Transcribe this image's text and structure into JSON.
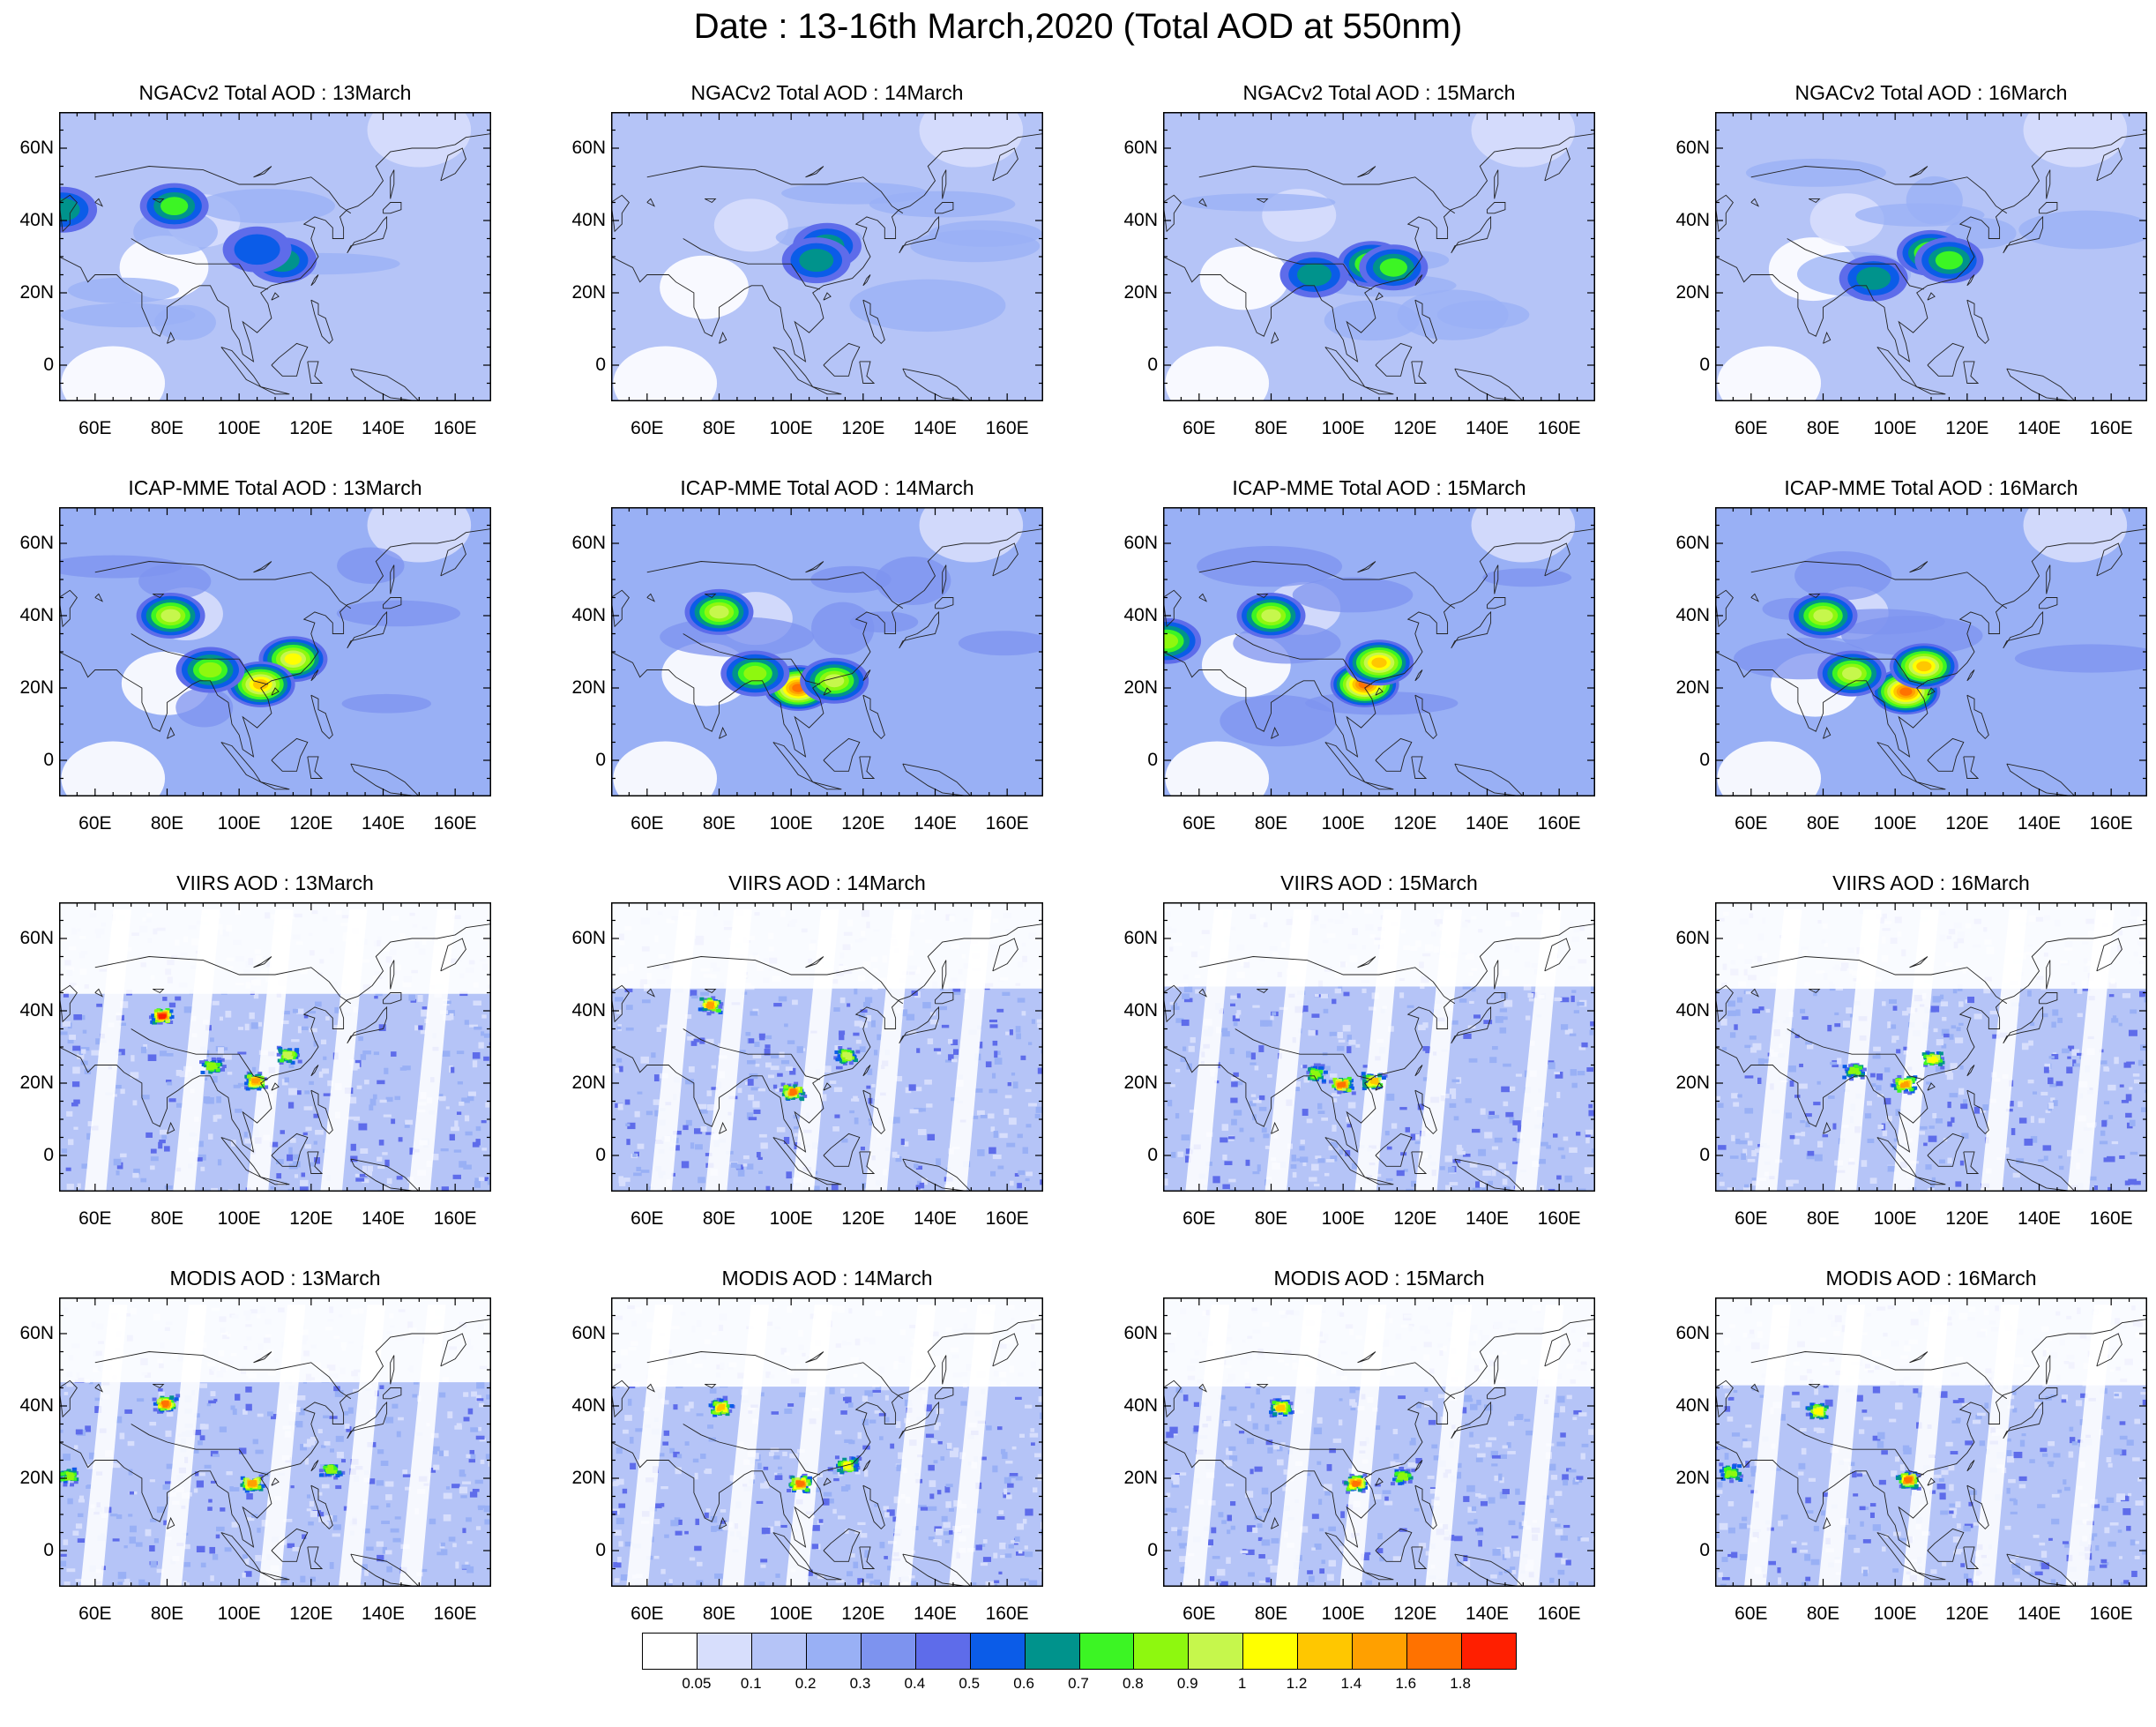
{
  "title": "Date : 13-16th March,2020 (Total AOD at 550nm)",
  "lat_ticks": [
    "60N",
    "40N",
    "20N",
    "0"
  ],
  "lon_ticks": [
    "60E",
    "80E",
    "100E",
    "120E",
    "140E",
    "160E"
  ],
  "rows": [
    {
      "source": "NGACv2 Total AOD",
      "kind": "model",
      "titles": [
        "NGACv2 Total AOD : 13March",
        "NGACv2 Total AOD : 14March",
        "NGACv2 Total AOD : 15March",
        "NGACv2 Total AOD : 16March"
      ]
    },
    {
      "source": "ICAP-MME Total AOD",
      "kind": "model",
      "titles": [
        "ICAP-MME Total AOD : 13March",
        "ICAP-MME Total AOD : 14March",
        "ICAP-MME Total AOD : 15March",
        "ICAP-MME Total AOD : 16March"
      ]
    },
    {
      "source": "VIIRS AOD",
      "kind": "satellite",
      "titles": [
        "VIIRS AOD : 13March",
        "VIIRS AOD : 14March",
        "VIIRS AOD : 15March",
        "VIIRS AOD : 16March"
      ]
    },
    {
      "source": "MODIS AOD",
      "kind": "satellite",
      "titles": [
        "MODIS AOD : 13March",
        "MODIS AOD : 14March",
        "MODIS AOD : 15March",
        "MODIS AOD : 16March"
      ]
    }
  ],
  "colorbar": {
    "labels": [
      "0.05",
      "0.1",
      "0.2",
      "0.3",
      "0.4",
      "0.5",
      "0.6",
      "0.7",
      "0.8",
      "0.9",
      "1",
      "1.2",
      "1.4",
      "1.6",
      "1.8"
    ],
    "colors": [
      "#ffffff",
      "#d7defc",
      "#b5c4f7",
      "#99b0f5",
      "#7d93ef",
      "#5e6cea",
      "#0b5ce8",
      "#00938c",
      "#3cf524",
      "#8ef80f",
      "#c6f74c",
      "#ffff00",
      "#ffc700",
      "#ffa000",
      "#ff7200",
      "#ff1f00"
    ]
  },
  "chart_data": {
    "type": "heatmap",
    "title": "Date : 13-16th March,2020 (Total AOD at 550nm)",
    "variable": "Total AOD at 550nm",
    "domain": {
      "lon": [
        50,
        170
      ],
      "lat": [
        -10,
        70
      ]
    },
    "lon_ticks": [
      60,
      80,
      100,
      120,
      140,
      160
    ],
    "lat_ticks": [
      0,
      20,
      40,
      60
    ],
    "dates": [
      "13March",
      "14March",
      "15March",
      "16March"
    ],
    "sources": [
      "NGACv2 Total AOD",
      "ICAP-MME Total AOD",
      "VIIRS AOD",
      "MODIS AOD"
    ],
    "levels": [
      0.05,
      0.1,
      0.2,
      0.3,
      0.4,
      0.5,
      0.6,
      0.7,
      0.8,
      0.9,
      1,
      1.2,
      1.4,
      1.6,
      1.8
    ],
    "background_aod": [
      [
        0.15,
        0.15,
        0.15,
        0.15
      ],
      [
        0.2,
        0.2,
        0.2,
        0.2
      ],
      [
        0.15,
        0.15,
        0.15,
        0.15
      ],
      [
        0.15,
        0.15,
        0.15,
        0.15
      ]
    ],
    "hotspots": [
      [
        [
          {
            "lon": 51,
            "lat": 43,
            "aod": 0.6
          },
          {
            "lon": 82,
            "lat": 44,
            "aod": 0.7
          },
          {
            "lon": 112,
            "lat": 29,
            "aod": 0.6
          },
          {
            "lon": 105,
            "lat": 32,
            "aod": 0.5
          }
        ],
        [
          {
            "lon": 110,
            "lat": 33,
            "aod": 0.6
          },
          {
            "lon": 107,
            "lat": 29,
            "aod": 0.6
          }
        ],
        [
          {
            "lon": 108,
            "lat": 28,
            "aod": 0.8
          },
          {
            "lon": 114,
            "lat": 27,
            "aod": 0.7
          },
          {
            "lon": 92,
            "lat": 25,
            "aod": 0.6
          }
        ],
        [
          {
            "lon": 110,
            "lat": 31,
            "aod": 0.8
          },
          {
            "lon": 115,
            "lat": 29,
            "aod": 0.7
          },
          {
            "lon": 94,
            "lat": 24,
            "aod": 0.6
          }
        ]
      ],
      [
        [
          {
            "lon": 115,
            "lat": 28,
            "aod": 1.0
          },
          {
            "lon": 106,
            "lat": 21,
            "aod": 1.2
          },
          {
            "lon": 81,
            "lat": 40,
            "aod": 0.9
          },
          {
            "lon": 92,
            "lat": 25,
            "aod": 0.8
          }
        ],
        [
          {
            "lon": 102,
            "lat": 20,
            "aod": 1.6
          },
          {
            "lon": 112,
            "lat": 22,
            "aod": 0.9
          },
          {
            "lon": 80,
            "lat": 41,
            "aod": 0.9
          },
          {
            "lon": 90,
            "lat": 24,
            "aod": 0.8
          }
        ],
        [
          {
            "lon": 106,
            "lat": 21,
            "aod": 1.6
          },
          {
            "lon": 110,
            "lat": 27,
            "aod": 1.2
          },
          {
            "lon": 80,
            "lat": 40,
            "aod": 0.9
          },
          {
            "lon": 51,
            "lat": 33,
            "aod": 0.8
          }
        ],
        [
          {
            "lon": 103,
            "lat": 19,
            "aod": 1.6
          },
          {
            "lon": 108,
            "lat": 26,
            "aod": 1.2
          },
          {
            "lon": 80,
            "lat": 40,
            "aod": 0.9
          },
          {
            "lon": 88,
            "lat": 24,
            "aod": 0.9
          }
        ]
      ],
      [
        [
          {
            "lon": 78,
            "lat": 39,
            "aod": 1.8
          },
          {
            "lon": 104,
            "lat": 21,
            "aod": 1.4
          },
          {
            "lon": 92,
            "lat": 25,
            "aod": 0.8
          },
          {
            "lon": 113,
            "lat": 28,
            "aod": 0.9
          }
        ],
        [
          {
            "lon": 100,
            "lat": 18,
            "aod": 1.6
          },
          {
            "lon": 115,
            "lat": 28,
            "aod": 0.9
          },
          {
            "lon": 77,
            "lat": 42,
            "aod": 1.4
          }
        ],
        [
          {
            "lon": 99,
            "lat": 20,
            "aod": 1.6
          },
          {
            "lon": 108,
            "lat": 21,
            "aod": 1.2
          },
          {
            "lon": 92,
            "lat": 23,
            "aod": 0.8
          }
        ],
        [
          {
            "lon": 102,
            "lat": 20,
            "aod": 1.4
          },
          {
            "lon": 110,
            "lat": 27,
            "aod": 1.0
          },
          {
            "lon": 88,
            "lat": 24,
            "aod": 0.8
          }
        ]
      ],
      [
        [
          {
            "lon": 79,
            "lat": 41,
            "aod": 1.6
          },
          {
            "lon": 103,
            "lat": 19,
            "aod": 1.4
          },
          {
            "lon": 52,
            "lat": 21,
            "aod": 0.8
          },
          {
            "lon": 125,
            "lat": 23,
            "aod": 0.8
          }
        ],
        [
          {
            "lon": 102,
            "lat": 19,
            "aod": 1.6
          },
          {
            "lon": 80,
            "lat": 40,
            "aod": 1.2
          },
          {
            "lon": 115,
            "lat": 24,
            "aod": 1.0
          }
        ],
        [
          {
            "lon": 103,
            "lat": 19,
            "aod": 1.6
          },
          {
            "lon": 82,
            "lat": 40,
            "aod": 1.2
          },
          {
            "lon": 116,
            "lat": 21,
            "aod": 0.8
          }
        ],
        [
          {
            "lon": 103,
            "lat": 20,
            "aod": 1.6
          },
          {
            "lon": 78,
            "lat": 39,
            "aod": 1.0
          },
          {
            "lon": 54,
            "lat": 22,
            "aod": 0.8
          }
        ]
      ]
    ]
  }
}
